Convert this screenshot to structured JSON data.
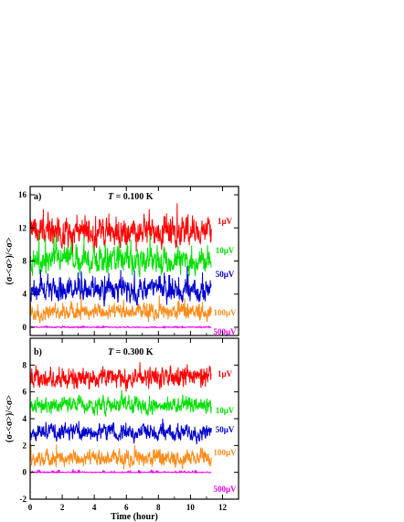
{
  "figure": {
    "xlabel": "Time (hour)",
    "ylabel": "(σ-<σ>)/<σ>"
  },
  "chart_data": [
    {
      "type": "line",
      "panel": "a)",
      "title_prefix": "T",
      "title_rest": " = 0.100 K",
      "xlim": [
        0,
        13
      ],
      "ylim": [
        -1,
        17
      ],
      "xticks": [
        0,
        2,
        4,
        6,
        8,
        10,
        12
      ],
      "yticks": [
        0,
        4,
        8,
        12,
        16
      ],
      "xlabel": "Time (hour)",
      "ylabel": "(σ-<σ>)/<σ>",
      "x_range": [
        0,
        11.3
      ],
      "series": [
        {
          "name": "1μV",
          "baseline": 11.5,
          "amplitude": 1.2,
          "spikes": 2.5,
          "color": "#ff0000"
        },
        {
          "name": "10μV",
          "baseline": 8.0,
          "amplitude": 1.0,
          "spikes": 2.5,
          "color": "#00e000"
        },
        {
          "name": "50μV",
          "baseline": 4.5,
          "amplitude": 0.9,
          "spikes": 2.0,
          "color": "#0000cc"
        },
        {
          "name": "100μV",
          "baseline": 1.8,
          "amplitude": 0.6,
          "spikes": 1.5,
          "color": "#ff8c1a"
        },
        {
          "name": "500μV",
          "baseline": 0.0,
          "amplitude": 0.04,
          "spikes": 0.1,
          "color": "#ee00ee"
        }
      ]
    },
    {
      "type": "line",
      "panel": "b)",
      "title_prefix": "T",
      "title_rest": " = 0.300 K",
      "xlim": [
        0,
        13
      ],
      "ylim": [
        -2,
        10
      ],
      "xticks": [
        0,
        2,
        4,
        6,
        8,
        10,
        12
      ],
      "yticks": [
        -2,
        0,
        2,
        4,
        6,
        8
      ],
      "xlabel": "Time (hour)",
      "ylabel": "(σ-<σ>)/<σ>",
      "x_range": [
        0,
        11.3
      ],
      "series": [
        {
          "name": "1μV",
          "baseline": 7.0,
          "amplitude": 0.5,
          "spikes": 0.8,
          "color": "#ff0000"
        },
        {
          "name": "10μV",
          "baseline": 5.0,
          "amplitude": 0.4,
          "spikes": 0.6,
          "color": "#00e000"
        },
        {
          "name": "50μV",
          "baseline": 3.0,
          "amplitude": 0.4,
          "spikes": 0.6,
          "color": "#0000cc"
        },
        {
          "name": "100μV",
          "baseline": 1.0,
          "amplitude": 0.4,
          "spikes": 0.6,
          "color": "#ff8c1a"
        },
        {
          "name": "500μV",
          "baseline": 0.0,
          "amplitude": 0.02,
          "spikes": 0.2,
          "color": "#ee00ee"
        }
      ]
    }
  ]
}
